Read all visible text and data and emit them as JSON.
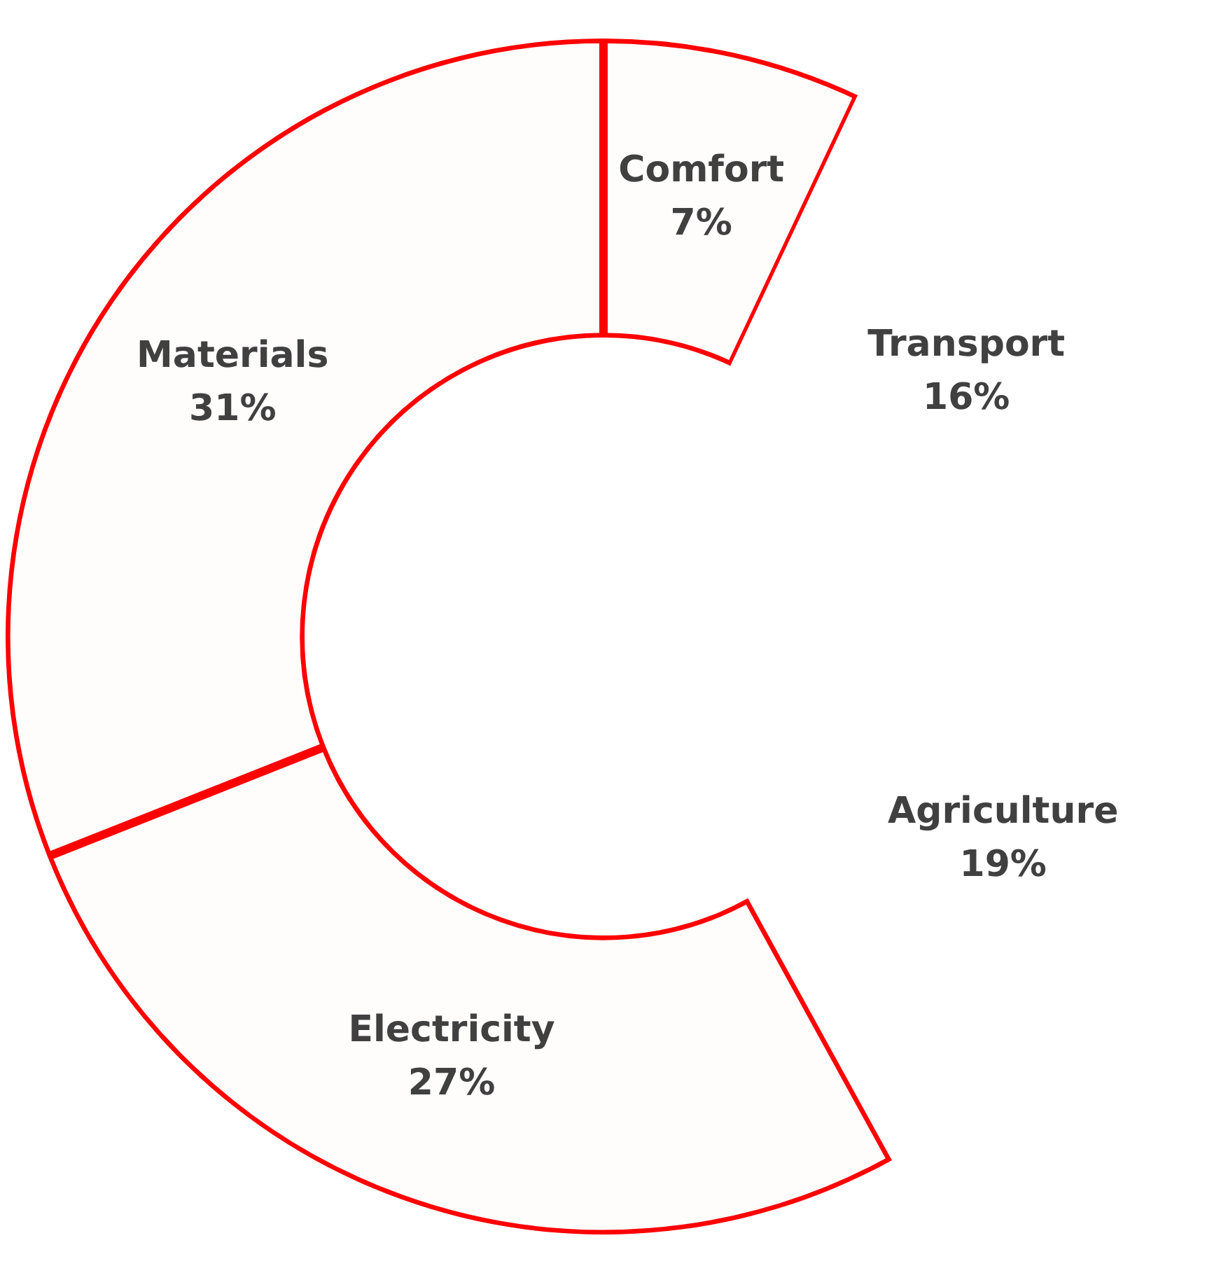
{
  "chart_data": {
    "type": "donut",
    "categories": [
      "Comfort",
      "Transport",
      "Agriculture",
      "Electricity",
      "Materials"
    ],
    "values": [
      7,
      16,
      19,
      27,
      31
    ],
    "value_labels": [
      "7%",
      "16%",
      "19%",
      "27%",
      "31%"
    ],
    "colors": [
      "#ff0000",
      "#ffffff",
      "#ffffff",
      "#ff0000",
      "#ff0000"
    ],
    "legend": false
  }
}
